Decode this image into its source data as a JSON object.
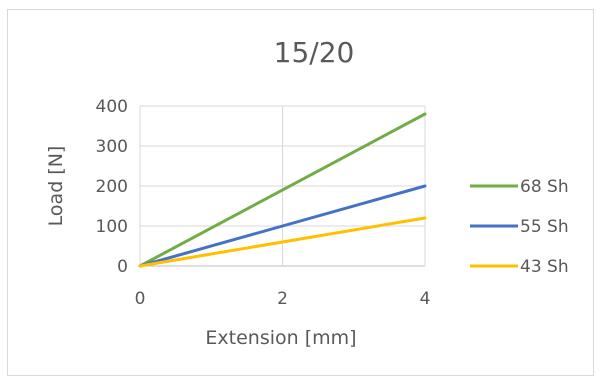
{
  "chart_data": {
    "type": "line",
    "title": "15/20",
    "xlabel": "Extension [mm]",
    "ylabel": "Load [N]",
    "x": [
      0,
      4
    ],
    "xlim": [
      0,
      4
    ],
    "ylim": [
      0,
      400
    ],
    "xticks": [
      0,
      2,
      4
    ],
    "yticks": [
      0,
      100,
      200,
      300,
      400
    ],
    "grid": true,
    "legend_position": "right",
    "series": [
      {
        "name": "68 Sh",
        "color": "#70ad47",
        "values": [
          0,
          380
        ]
      },
      {
        "name": "55 Sh",
        "color": "#4472c4",
        "values": [
          0,
          200
        ]
      },
      {
        "name": "43 Sh",
        "color": "#ffc000",
        "values": [
          0,
          120
        ]
      }
    ]
  }
}
